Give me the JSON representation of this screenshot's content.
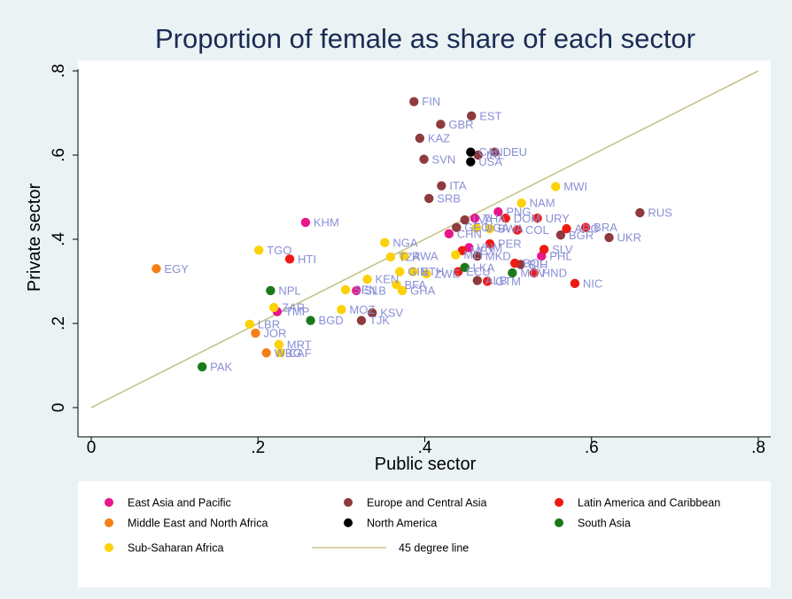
{
  "chart_data": {
    "type": "scatter",
    "title": "Proportion of female as share of each sector",
    "xlabel": "Public sector",
    "ylabel": "Private sector",
    "xlim": [
      0,
      0.8
    ],
    "ylim": [
      0,
      0.8
    ],
    "x_ticks": [
      {
        "value": 0,
        "label": "0"
      },
      {
        "value": 0.2,
        "label": ".2"
      },
      {
        "value": 0.4,
        "label": ".4"
      },
      {
        "value": 0.6,
        "label": ".6"
      },
      {
        "value": 0.8,
        "label": ".8"
      }
    ],
    "y_ticks": [
      {
        "value": 0,
        "label": "0"
      },
      {
        "value": 0.2,
        "label": ".2"
      },
      {
        "value": 0.4,
        "label": ".4"
      },
      {
        "value": 0.6,
        "label": ".6"
      },
      {
        "value": 0.8,
        "label": ".8"
      }
    ],
    "grid": false,
    "legend_position": "bottom",
    "reference_line": {
      "name": "45 degree line",
      "from": [
        0,
        0
      ],
      "to": [
        0.8,
        0.8
      ],
      "color": "#c8c488"
    },
    "label_color": "#8a8fd6",
    "series": [
      {
        "name": "East Asia and Pacific",
        "color": "#e8168c",
        "points": [
          {
            "label": "KHM",
            "x": 0.257,
            "y": 0.44
          },
          {
            "label": "PNG",
            "x": 0.488,
            "y": 0.465
          },
          {
            "label": "THA",
            "x": 0.46,
            "y": 0.45
          },
          {
            "label": "CHN",
            "x": 0.429,
            "y": 0.413
          },
          {
            "label": "VNM",
            "x": 0.453,
            "y": 0.38
          },
          {
            "label": "PHL",
            "x": 0.54,
            "y": 0.36
          },
          {
            "label": "TMP",
            "x": 0.223,
            "y": 0.228
          },
          {
            "label": "SLB",
            "x": 0.318,
            "y": 0.278
          }
        ]
      },
      {
        "name": "Europe and Central Asia",
        "color": "#8e3a3e",
        "points": [
          {
            "label": "FIN",
            "x": 0.387,
            "y": 0.727
          },
          {
            "label": "EST",
            "x": 0.456,
            "y": 0.693
          },
          {
            "label": "GBR",
            "x": 0.419,
            "y": 0.673
          },
          {
            "label": "KAZ",
            "x": 0.394,
            "y": 0.64
          },
          {
            "label": "DEU",
            "x": 0.484,
            "y": 0.607
          },
          {
            "label": "SVN",
            "x": 0.399,
            "y": 0.59
          },
          {
            "label": "IRL",
            "x": 0.464,
            "y": 0.6
          },
          {
            "label": "ITA",
            "x": 0.42,
            "y": 0.527
          },
          {
            "label": "SRB",
            "x": 0.405,
            "y": 0.497
          },
          {
            "label": "RUS",
            "x": 0.658,
            "y": 0.463
          },
          {
            "label": "UKR",
            "x": 0.621,
            "y": 0.404
          },
          {
            "label": "BGR",
            "x": 0.563,
            "y": 0.41
          },
          {
            "label": "GEO",
            "x": 0.438,
            "y": 0.428
          },
          {
            "label": "LVA",
            "x": 0.448,
            "y": 0.446
          },
          {
            "label": "MKD",
            "x": 0.463,
            "y": 0.36
          },
          {
            "label": "ALB",
            "x": 0.463,
            "y": 0.302
          },
          {
            "label": "BIH",
            "x": 0.515,
            "y": 0.34
          },
          {
            "label": "KSV",
            "x": 0.337,
            "y": 0.225
          },
          {
            "label": "TJK",
            "x": 0.324,
            "y": 0.207
          }
        ]
      },
      {
        "name": "Latin America and Caribbean",
        "color": "#ef1a14",
        "points": [
          {
            "label": "URY",
            "x": 0.535,
            "y": 0.45
          },
          {
            "label": "DOM",
            "x": 0.497,
            "y": 0.45
          },
          {
            "label": "COL",
            "x": 0.511,
            "y": 0.422
          },
          {
            "label": "ARG",
            "x": 0.57,
            "y": 0.425
          },
          {
            "label": "BRA",
            "x": 0.593,
            "y": 0.428
          },
          {
            "label": "PER",
            "x": 0.478,
            "y": 0.389
          },
          {
            "label": "SLV",
            "x": 0.543,
            "y": 0.376
          },
          {
            "label": "BOL",
            "x": 0.508,
            "y": 0.343
          },
          {
            "label": "HND",
            "x": 0.531,
            "y": 0.32
          },
          {
            "label": "NIC",
            "x": 0.58,
            "y": 0.295
          },
          {
            "label": "HTI",
            "x": 0.238,
            "y": 0.353
          },
          {
            "label": "MEX",
            "x": 0.445,
            "y": 0.373
          },
          {
            "label": "GTM",
            "x": 0.475,
            "y": 0.3
          },
          {
            "label": "ECU",
            "x": 0.44,
            "y": 0.323
          }
        ]
      },
      {
        "name": "Middle East and North Africa",
        "color": "#f57f17",
        "points": [
          {
            "label": "EGY",
            "x": 0.078,
            "y": 0.33
          },
          {
            "label": "JOR",
            "x": 0.197,
            "y": 0.177
          },
          {
            "label": "WBG",
            "x": 0.21,
            "y": 0.13
          }
        ]
      },
      {
        "name": "North America",
        "color": "#000000",
        "points": [
          {
            "label": "CAN",
            "x": 0.455,
            "y": 0.607
          },
          {
            "label": "USA",
            "x": 0.455,
            "y": 0.584
          }
        ]
      },
      {
        "name": "South Asia",
        "color": "#1a7a1a",
        "points": [
          {
            "label": "NPL",
            "x": 0.215,
            "y": 0.278
          },
          {
            "label": "BGD",
            "x": 0.263,
            "y": 0.207
          },
          {
            "label": "LKA",
            "x": 0.448,
            "y": 0.333
          },
          {
            "label": "MDV",
            "x": 0.505,
            "y": 0.32
          },
          {
            "label": "PAK",
            "x": 0.133,
            "y": 0.097
          }
        ]
      },
      {
        "name": "Sub-Saharan Africa",
        "color": "#fdd108",
        "points": [
          {
            "label": "MWI",
            "x": 0.557,
            "y": 0.525
          },
          {
            "label": "NAM",
            "x": 0.516,
            "y": 0.486
          },
          {
            "label": "BWA",
            "x": 0.478,
            "y": 0.425
          },
          {
            "label": "UGA",
            "x": 0.462,
            "y": 0.427
          },
          {
            "label": "NGA",
            "x": 0.352,
            "y": 0.392
          },
          {
            "label": "TGO",
            "x": 0.201,
            "y": 0.374
          },
          {
            "label": "RWA",
            "x": 0.375,
            "y": 0.36
          },
          {
            "label": "TZA",
            "x": 0.359,
            "y": 0.358
          },
          {
            "label": "MLI",
            "x": 0.437,
            "y": 0.363
          },
          {
            "label": "KEN",
            "x": 0.331,
            "y": 0.305
          },
          {
            "label": "GIN",
            "x": 0.37,
            "y": 0.323
          },
          {
            "label": "ETH",
            "x": 0.386,
            "y": 0.323
          },
          {
            "label": "ZWE",
            "x": 0.402,
            "y": 0.318
          },
          {
            "label": "BFA",
            "x": 0.366,
            "y": 0.292
          },
          {
            "label": "GHA",
            "x": 0.373,
            "y": 0.278
          },
          {
            "label": "SEN",
            "x": 0.305,
            "y": 0.28
          },
          {
            "label": "ZAR",
            "x": 0.219,
            "y": 0.238
          },
          {
            "label": "MOZ",
            "x": 0.3,
            "y": 0.233
          },
          {
            "label": "LBR",
            "x": 0.19,
            "y": 0.198
          },
          {
            "label": "MRT",
            "x": 0.225,
            "y": 0.15
          },
          {
            "label": "CAF",
            "x": 0.227,
            "y": 0.13
          }
        ]
      }
    ],
    "legend_entries": [
      {
        "label": "East Asia and Pacific",
        "kind": "marker",
        "color": "#e8168c"
      },
      {
        "label": "Europe and Central Asia",
        "kind": "marker",
        "color": "#8e3a3e"
      },
      {
        "label": "Latin America and Caribbean",
        "kind": "marker",
        "color": "#ef1a14"
      },
      {
        "label": "Middle East and North Africa",
        "kind": "marker",
        "color": "#f57f17"
      },
      {
        "label": "North America",
        "kind": "marker",
        "color": "#000000"
      },
      {
        "label": "South Asia",
        "kind": "marker",
        "color": "#1a7a1a"
      },
      {
        "label": "Sub-Saharan Africa",
        "kind": "marker",
        "color": "#fdd108"
      },
      {
        "label": "45 degree line",
        "kind": "line",
        "color": "#c8c488"
      }
    ]
  }
}
